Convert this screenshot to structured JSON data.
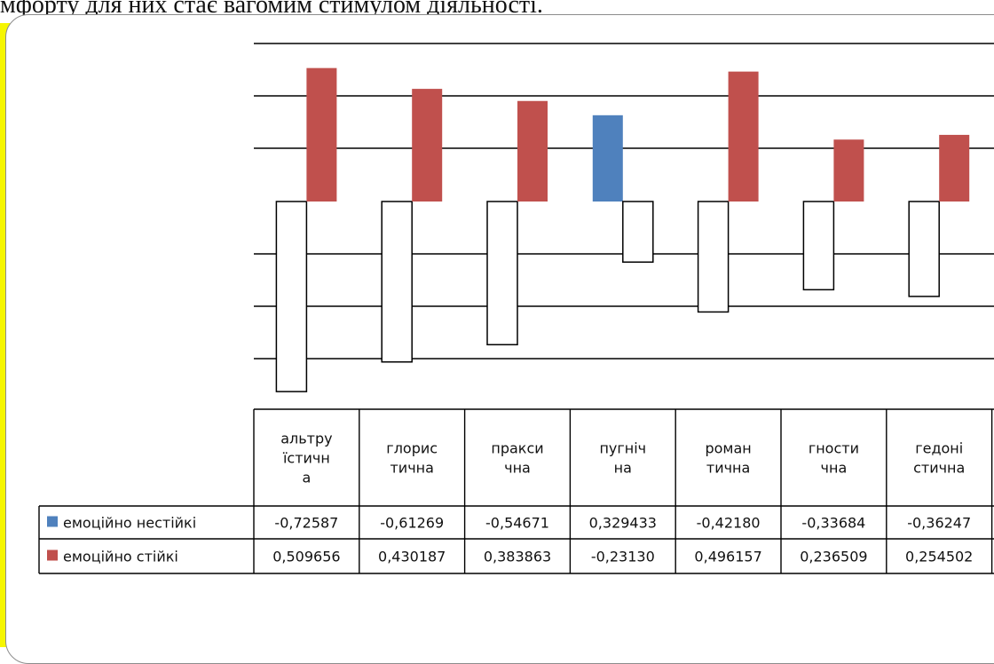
{
  "document": {
    "caption_fragment": "мфорту для них стає вагомим стимулом діяльності."
  },
  "chart_data": {
    "type": "bar",
    "categories": [
      [
        "альтру",
        "їстичн",
        "а"
      ],
      [
        "глорис",
        "тична"
      ],
      [
        "пракси",
        "чна"
      ],
      [
        "пугніч",
        "на"
      ],
      [
        "роман",
        "тична"
      ],
      [
        "гности",
        "чна"
      ],
      [
        "гедоні",
        "стична"
      ]
    ],
    "series": [
      {
        "name": "емоційно нестійкі",
        "color": "#4f81bd",
        "values": [
          -0.72587,
          -0.61269,
          -0.54671,
          0.329433,
          -0.4218,
          -0.33684,
          -0.36247
        ],
        "labels": [
          "-0,72587",
          "-0,61269",
          "-0,54671",
          "0,329433",
          "-0,42180",
          "-0,33684",
          "-0,36247"
        ]
      },
      {
        "name": "емоційно стійкі",
        "color": "#c0504d",
        "values": [
          0.509656,
          0.430187,
          0.383863,
          -0.2313,
          0.496157,
          0.236509,
          0.254502
        ],
        "labels": [
          "0,509656",
          "0,430187",
          "0,383863",
          "-0,23130",
          "0,496157",
          "0,236509",
          "0,254502"
        ]
      }
    ],
    "negative_bar_fill": "#ffffff",
    "gridlines": true,
    "data_table": true,
    "legend": "in data table"
  }
}
